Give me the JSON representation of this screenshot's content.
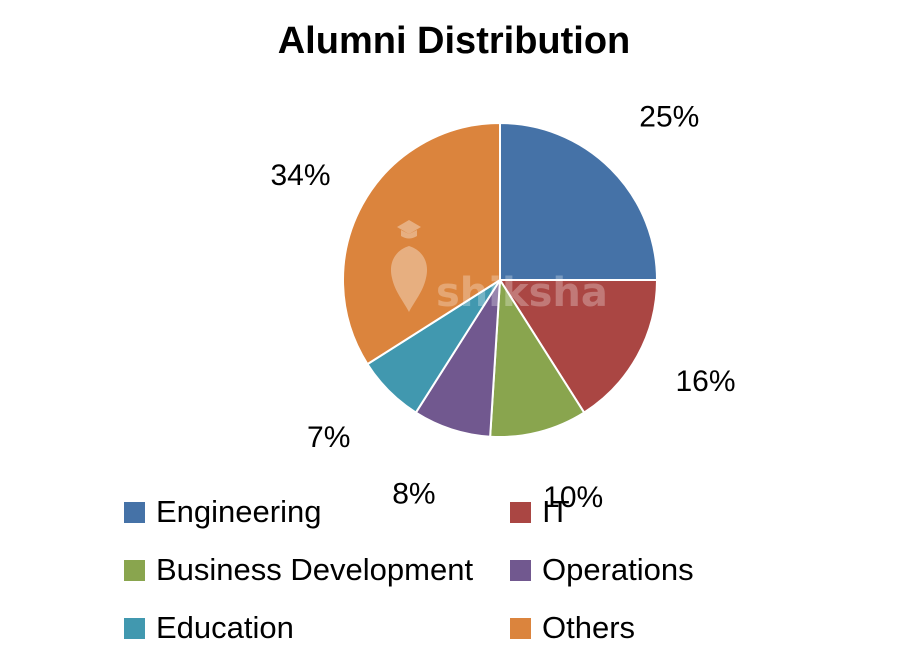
{
  "chart_data": {
    "type": "pie",
    "title": "Alumni Distribution",
    "slices": [
      {
        "name": "Engineering",
        "value": 25,
        "label": "25%",
        "color": "#4572A7"
      },
      {
        "name": "IT",
        "value": 16,
        "label": "16%",
        "color": "#AA4643"
      },
      {
        "name": "Business Development",
        "value": 10,
        "label": "10%",
        "color": "#89A54E"
      },
      {
        "name": "Operations",
        "value": 8,
        "label": "8%",
        "color": "#71588F"
      },
      {
        "name": "Education",
        "value": 7,
        "label": "7%",
        "color": "#4198AF"
      },
      {
        "name": "Others",
        "value": 34,
        "label": "34%",
        "color": "#DB843D"
      }
    ],
    "legend_position": "bottom",
    "start_angle": "12 o'clock",
    "direction": "clockwise"
  },
  "watermark": {
    "text": "shiksha",
    "icon": "graduation-cap-icon"
  }
}
